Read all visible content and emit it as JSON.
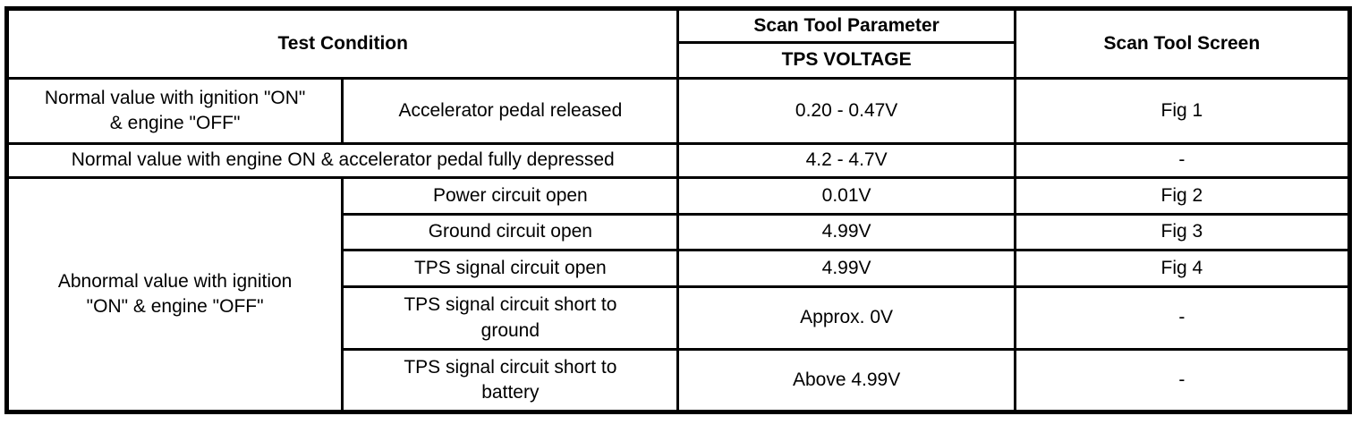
{
  "page": {
    "background_color": "#ffffff",
    "text_color": "#000000",
    "border_color": "#000000"
  },
  "table": {
    "headers": {
      "test_condition": "Test Condition",
      "scan_tool_parameter": "Scan Tool Parameter",
      "parameter_name": "TPS VOLTAGE",
      "scan_tool_screen": "Scan Tool Screen"
    },
    "rows": [
      {
        "condition": "Normal value with ignition \"ON\"\n& engine \"OFF\"",
        "detail": "Accelerator pedal released",
        "parameter_value": "0.20 - 0.47V",
        "screen": "Fig 1"
      },
      {
        "condition": "Normal value with engine ON & accelerator pedal fully depressed",
        "parameter_value": "4.2 - 4.7V",
        "screen": "-"
      },
      {
        "condition": "Abnormal value with ignition\n\"ON\" & engine \"OFF\"",
        "detail": "Power circuit open",
        "parameter_value": "0.01V",
        "screen": "Fig 2"
      },
      {
        "detail": "Ground circuit open",
        "parameter_value": "4.99V",
        "screen": "Fig 3"
      },
      {
        "detail": "TPS signal circuit open",
        "parameter_value": "4.99V",
        "screen": "Fig 4"
      },
      {
        "detail": "TPS signal circuit short to\nground",
        "parameter_value": "Approx. 0V",
        "screen": "-"
      },
      {
        "detail": "TPS signal circuit short to\nbattery",
        "parameter_value": "Above 4.99V",
        "screen": "-"
      }
    ]
  }
}
